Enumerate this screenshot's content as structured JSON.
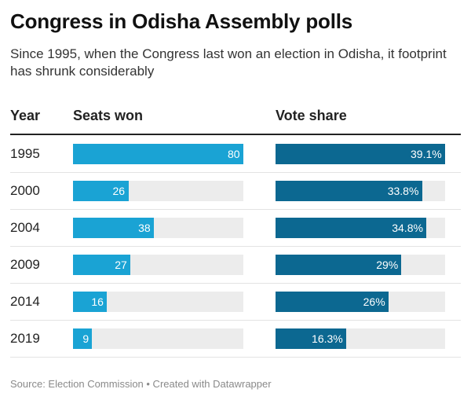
{
  "header": {
    "title": "Congress in Odisha Assembly polls",
    "subtitle": "Since 1995, when the Congress last won an election in Odisha, it footprint has shrunk considerably"
  },
  "chart_data": {
    "type": "bar",
    "columns": [
      "Year",
      "Seats won",
      "Vote share"
    ],
    "categories": [
      "1995",
      "2000",
      "2004",
      "2009",
      "2014",
      "2019"
    ],
    "series": [
      {
        "name": "Seats won",
        "values": [
          80,
          26,
          38,
          27,
          16,
          9
        ],
        "labels": [
          "80",
          "26",
          "38",
          "27",
          "16",
          "9"
        ],
        "max": 80,
        "color": "#1aa3d4"
      },
      {
        "name": "Vote share",
        "values": [
          39.1,
          33.8,
          34.8,
          29,
          26,
          16.3
        ],
        "labels": [
          "39.1%",
          "33.8%",
          "34.8%",
          "29%",
          "26%",
          "16.3%"
        ],
        "max": 39.1,
        "color": "#0c6891"
      }
    ],
    "track_color": "#ececec"
  },
  "footer": {
    "source": "Source: Election Commission • Created with Datawrapper"
  }
}
